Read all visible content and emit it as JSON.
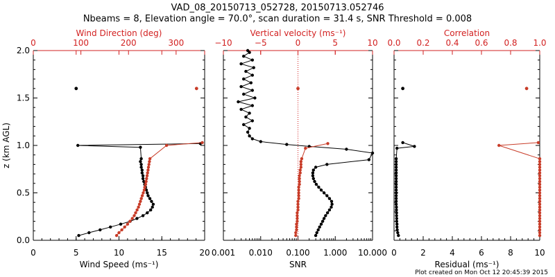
{
  "title_line1": "VAD_08_20150713_052728, 20150713.052746",
  "title_line2": "Nbeams = 8, Elevation angle = 70.0°, scan duration = 31.4 s, SNR Threshold = 0.008",
  "footer": "Plot created on Mon Oct 12 20:45:39 2015",
  "colors": {
    "black": "#000000",
    "red": "#c83c28",
    "red_axis": "#d22020"
  },
  "chart_data": [
    {
      "type": "line",
      "panel": "wind",
      "ylabel": "z (km AGL)",
      "ylim": [
        0,
        2
      ],
      "yticks": [
        "0.0",
        "0.5",
        "1.0",
        "1.5",
        "2.0"
      ],
      "bottom_axis": {
        "label": "Wind Speed (ms⁻¹)",
        "lim": [
          0,
          20
        ],
        "ticks": [
          "0",
          "5",
          "10",
          "15",
          "20"
        ]
      },
      "top_axis": {
        "label": "Wind Direction (deg)",
        "lim": [
          0,
          360
        ],
        "ticks": [
          "0",
          "100",
          "200",
          "300"
        ]
      },
      "series": [
        {
          "name": "Wind Speed",
          "color": "black",
          "axis": "bottom",
          "x": [
            5.3,
            6.5,
            7.8,
            9.0,
            10.2,
            11.3,
            12.1,
            12.8,
            13.3,
            13.7,
            13.9,
            14.0,
            13.8,
            13.6,
            13.4,
            13.3,
            13.2,
            13.1,
            13.0,
            12.9,
            12.8,
            12.8,
            12.7,
            12.7,
            12.6,
            12.6,
            12.5,
            12.6,
            12.5,
            5.2,
            19.5
          ],
          "y": [
            0.05,
            0.08,
            0.11,
            0.14,
            0.17,
            0.2,
            0.23,
            0.26,
            0.29,
            0.32,
            0.35,
            0.38,
            0.41,
            0.44,
            0.47,
            0.5,
            0.53,
            0.56,
            0.59,
            0.62,
            0.65,
            0.68,
            0.71,
            0.74,
            0.77,
            0.8,
            0.83,
            0.86,
            0.98,
            1.0,
            1.02
          ]
        },
        {
          "name": "Wind Direction",
          "color": "red",
          "axis": "top",
          "x": [
            175,
            180,
            186,
            192,
            198,
            203,
            208,
            212,
            215,
            218,
            221,
            223,
            225,
            227,
            229,
            231,
            233,
            234,
            236,
            237,
            238,
            239,
            240,
            241,
            242,
            243,
            244,
            245,
            280,
            355
          ],
          "y": [
            0.05,
            0.08,
            0.11,
            0.14,
            0.17,
            0.2,
            0.23,
            0.26,
            0.29,
            0.32,
            0.35,
            0.38,
            0.41,
            0.44,
            0.47,
            0.5,
            0.53,
            0.56,
            0.59,
            0.62,
            0.65,
            0.68,
            0.71,
            0.74,
            0.77,
            0.8,
            0.83,
            0.86,
            1.0,
            1.03
          ]
        }
      ],
      "markers": [
        {
          "color": "black",
          "axis": "bottom",
          "x": 5.0,
          "y": 1.6
        },
        {
          "color": "red",
          "axis": "top",
          "x": 343,
          "y": 1.6
        }
      ]
    },
    {
      "type": "line",
      "panel": "snr",
      "ylim": [
        0,
        2
      ],
      "bottom_axis": {
        "label": "SNR",
        "scale": "log",
        "lim": [
          0.001,
          10
        ],
        "ticks": [
          "0.001",
          "0.010",
          "0.100",
          "1.000",
          "10.000"
        ]
      },
      "top_axis": {
        "label": "Vertical velocity (ms⁻¹)",
        "lim": [
          -10,
          10
        ],
        "ticks": [
          "−10",
          "−5",
          "0",
          "5",
          "10"
        ]
      },
      "series": [
        {
          "name": "SNR",
          "color": "black",
          "axis": "bottom",
          "x": [
            0.3,
            0.32,
            0.35,
            0.38,
            0.42,
            0.46,
            0.5,
            0.55,
            0.62,
            0.7,
            0.78,
            0.82,
            0.8,
            0.7,
            0.6,
            0.5,
            0.42,
            0.36,
            0.31,
            0.28,
            0.26,
            0.25,
            0.25,
            0.26,
            0.3,
            0.6,
            8.0,
            10.0,
            2.0,
            0.2,
            0.05,
            0.01,
            0.006,
            0.005,
            0.0045,
            0.005,
            0.0035,
            0.006,
            0.004,
            0.005,
            0.003,
            0.006,
            0.0025,
            0.007,
            0.0035,
            0.006,
            0.003,
            0.0055,
            0.0035,
            0.006,
            0.004,
            0.0065,
            0.003,
            0.006,
            0.0035,
            0.005,
            0.0045
          ],
          "y": [
            0.05,
            0.08,
            0.11,
            0.14,
            0.17,
            0.2,
            0.23,
            0.26,
            0.29,
            0.32,
            0.35,
            0.38,
            0.41,
            0.44,
            0.47,
            0.5,
            0.53,
            0.56,
            0.59,
            0.62,
            0.65,
            0.68,
            0.71,
            0.74,
            0.77,
            0.8,
            0.85,
            0.92,
            0.96,
            0.99,
            1.01,
            1.04,
            1.07,
            1.1,
            1.14,
            1.18,
            1.22,
            1.26,
            1.3,
            1.34,
            1.38,
            1.42,
            1.46,
            1.5,
            1.54,
            1.58,
            1.62,
            1.66,
            1.7,
            1.74,
            1.78,
            1.82,
            1.86,
            1.9,
            1.94,
            1.98,
            2.0
          ]
        },
        {
          "name": "Vertical velocity",
          "color": "red",
          "axis": "top",
          "x": [
            -0.3,
            -0.3,
            -0.2,
            -0.2,
            -0.2,
            -0.1,
            -0.1,
            -0.1,
            -0.1,
            0.0,
            0.0,
            0.0,
            0.0,
            0.1,
            0.1,
            0.1,
            0.1,
            0.1,
            0.2,
            0.2,
            0.2,
            0.2,
            0.3,
            0.3,
            0.4,
            0.4,
            0.4,
            0.5,
            1.0,
            4.0
          ],
          "y": [
            0.05,
            0.08,
            0.11,
            0.14,
            0.17,
            0.2,
            0.23,
            0.26,
            0.29,
            0.32,
            0.35,
            0.38,
            0.41,
            0.44,
            0.47,
            0.5,
            0.53,
            0.56,
            0.59,
            0.62,
            0.65,
            0.68,
            0.71,
            0.74,
            0.77,
            0.8,
            0.83,
            0.86,
            0.97,
            1.02
          ]
        }
      ],
      "markers": [
        {
          "color": "red",
          "axis": "top",
          "x": 0.0,
          "y": 1.6
        }
      ],
      "reference_line": {
        "axis": "top",
        "x": 0,
        "style": "dotted",
        "color": "red"
      }
    },
    {
      "type": "line",
      "panel": "residual",
      "ylim": [
        0,
        2
      ],
      "bottom_axis": {
        "label": "Residual (ms⁻¹)",
        "lim": [
          0,
          10
        ],
        "ticks": [
          "0",
          "2",
          "4",
          "6",
          "8",
          "10"
        ]
      },
      "top_axis": {
        "label": "Correlation",
        "lim": [
          0,
          1
        ],
        "ticks": [
          "0.0",
          "0.2",
          "0.4",
          "0.6",
          "0.8",
          "1.0"
        ]
      },
      "series": [
        {
          "name": "Residual",
          "color": "black",
          "axis": "bottom",
          "x": [
            0.3,
            0.25,
            0.22,
            0.2,
            0.2,
            0.18,
            0.18,
            0.17,
            0.17,
            0.16,
            0.16,
            0.15,
            0.15,
            0.15,
            0.15,
            0.15,
            0.15,
            0.15,
            0.15,
            0.15,
            0.15,
            0.15,
            0.15,
            0.15,
            0.15,
            0.15,
            0.15,
            0.15,
            0.2,
            1.4,
            0.6
          ],
          "y": [
            0.05,
            0.08,
            0.11,
            0.14,
            0.17,
            0.2,
            0.23,
            0.26,
            0.29,
            0.32,
            0.35,
            0.38,
            0.41,
            0.44,
            0.47,
            0.5,
            0.53,
            0.56,
            0.59,
            0.62,
            0.65,
            0.68,
            0.71,
            0.74,
            0.77,
            0.8,
            0.83,
            0.86,
            0.97,
            0.99,
            1.03
          ]
        },
        {
          "name": "Correlation",
          "color": "red",
          "axis": "top",
          "x": [
            1.0,
            1.0,
            1.0,
            1.0,
            1.0,
            1.0,
            1.0,
            1.0,
            1.0,
            1.0,
            1.0,
            1.0,
            1.0,
            1.0,
            1.0,
            1.0,
            1.0,
            1.0,
            1.0,
            1.0,
            1.0,
            1.0,
            1.0,
            1.0,
            1.0,
            1.0,
            1.0,
            1.0,
            0.72,
            0.99
          ],
          "y": [
            0.05,
            0.08,
            0.11,
            0.14,
            0.17,
            0.2,
            0.23,
            0.26,
            0.29,
            0.32,
            0.35,
            0.38,
            0.41,
            0.44,
            0.47,
            0.5,
            0.53,
            0.56,
            0.59,
            0.62,
            0.65,
            0.68,
            0.71,
            0.74,
            0.77,
            0.8,
            0.83,
            0.86,
            1.0,
            1.03
          ]
        }
      ],
      "markers": [
        {
          "color": "black",
          "axis": "bottom",
          "x": 0.6,
          "y": 1.6
        },
        {
          "color": "red",
          "axis": "top",
          "x": 0.91,
          "y": 1.6
        }
      ]
    }
  ]
}
